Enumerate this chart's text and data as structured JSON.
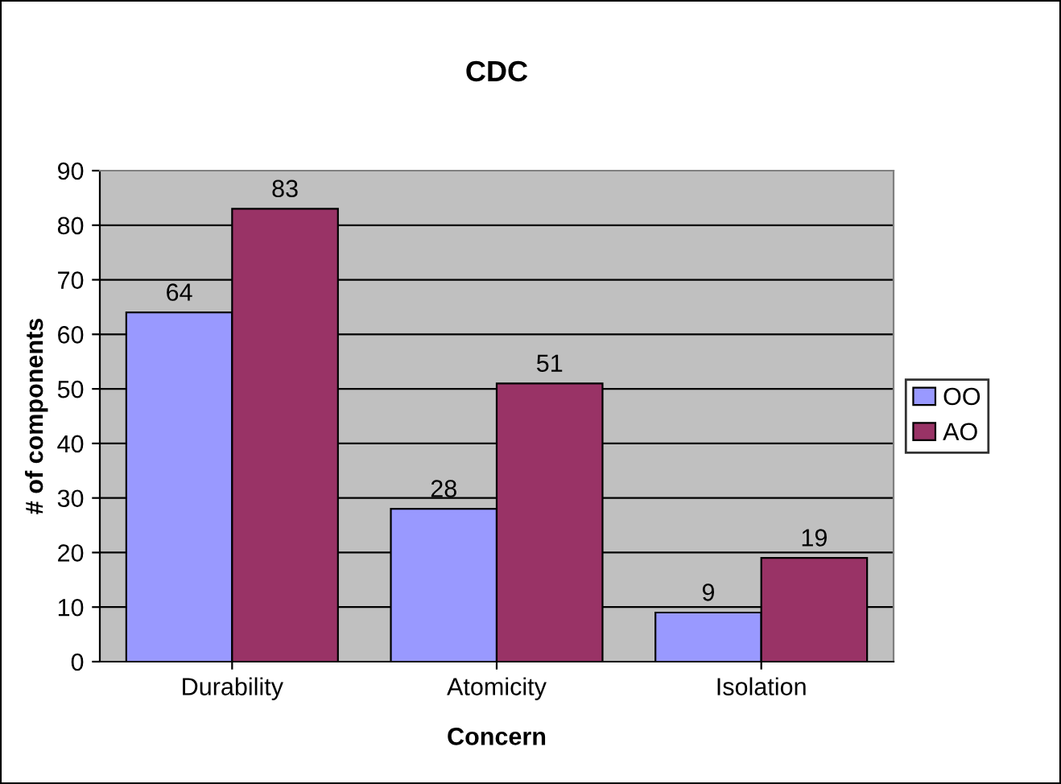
{
  "chart_data": {
    "type": "bar",
    "title": "CDC",
    "xlabel": "Concern",
    "ylabel": "# of components",
    "categories": [
      "Durability",
      "Atomicity",
      "Isolation"
    ],
    "series": [
      {
        "name": "OO",
        "color": "#9999ff",
        "values": [
          64,
          28,
          9
        ]
      },
      {
        "name": "AO",
        "color": "#993366",
        "values": [
          83,
          51,
          19
        ]
      }
    ],
    "ylim": [
      0,
      90
    ],
    "yticks": [
      0,
      10,
      20,
      30,
      40,
      50,
      60,
      70,
      80,
      90
    ],
    "grid": "y",
    "legend": "right",
    "data_labels": true
  }
}
